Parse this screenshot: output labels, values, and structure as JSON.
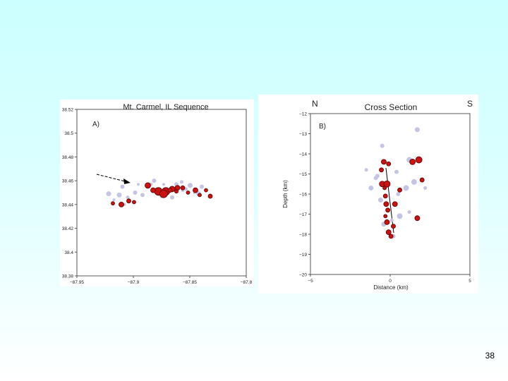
{
  "slide": {
    "page_number": "38"
  },
  "colors": {
    "background_top": "#ccffff",
    "event_red": "#cc1111",
    "event_outline": "#550000",
    "event_gray": "#c4c4e4"
  },
  "chart_data": [
    {
      "type": "scatter",
      "panel_label": "A)",
      "title": "Mt. Carmel, IL Sequence",
      "xlabel": "",
      "ylabel": "",
      "xlim": [
        -87.96,
        -87.8
      ],
      "ylim": [
        38.38,
        38.52
      ],
      "x_ticks": [
        "−87.95",
        "−87.9",
        "−87.85",
        "−87.8"
      ],
      "y_ticks": [
        "38.52",
        "38.5",
        "38.48",
        "38.46",
        "38.44",
        "38.42",
        "38.4",
        "38.38"
      ],
      "annotation": "arrow pointing to mainshock",
      "series": [
        {
          "color": "gray",
          "points": [
            [
              -87.898,
              38.448
            ],
            [
              -87.89,
              38.457
            ],
            [
              -87.885,
              38.452
            ],
            [
              -87.878,
              38.457
            ],
            [
              -87.873,
              38.452
            ],
            [
              -87.866,
              38.457
            ],
            [
              -87.86,
              38.452
            ],
            [
              -87.853,
              38.456
            ],
            [
              -87.849,
              38.45
            ],
            [
              -87.842,
              38.455
            ],
            [
              -87.905,
              38.45
            ],
            [
              -87.912,
              38.446
            ],
            [
              -87.92,
              38.448
            ],
            [
              -87.925,
              38.444
            ],
            [
              -87.917,
              38.455
            ],
            [
              -87.887,
              38.46
            ],
            [
              -87.857,
              38.453
            ],
            [
              -87.93,
              38.449
            ],
            [
              -87.902,
              38.457
            ],
            [
              -87.87,
              38.446
            ],
            [
              -87.88,
              38.447
            ],
            [
              -87.861,
              38.459
            ],
            [
              -87.845,
              38.449
            ],
            [
              -87.915,
              38.44
            ]
          ]
        },
        {
          "color": "red",
          "points": [
            [
              -87.876,
              38.451
            ],
            [
              -87.87,
              38.453
            ],
            [
              -87.865,
              38.454
            ],
            [
              -87.86,
              38.454
            ],
            [
              -87.855,
              38.45
            ],
            [
              -87.848,
              38.452
            ],
            [
              -87.844,
              38.448
            ],
            [
              -87.838,
              38.452
            ],
            [
              -87.834,
              38.447
            ],
            [
              -87.883,
              38.451
            ],
            [
              -87.893,
              38.456
            ],
            [
              -87.888,
              38.452
            ],
            [
              -87.911,
              38.443
            ],
            [
              -87.906,
              38.442
            ],
            [
              -87.918,
              38.44
            ],
            [
              -87.926,
              38.441
            ],
            [
              -87.866,
              38.451
            ],
            [
              -87.872,
              38.452
            ],
            [
              -87.878,
              38.449
            ]
          ]
        }
      ]
    },
    {
      "type": "scatter",
      "panel_label": "B)",
      "title": "Cross Section",
      "corner_left": "N",
      "corner_right": "S",
      "xlabel": "Distance (km)",
      "ylabel": "Depth (km)",
      "xlim": [
        -5,
        5
      ],
      "ylim": [
        -20,
        -12
      ],
      "x_ticks": [
        "−5",
        "0",
        "5"
      ],
      "y_ticks": [
        "−12",
        "−13",
        "−14",
        "−15",
        "−16",
        "−17",
        "−18",
        "−19",
        "−20"
      ],
      "annotation": "dipping fault line",
      "series": [
        {
          "color": "gray",
          "points": [
            [
              1.7,
              -12.8
            ],
            [
              -0.5,
              -13.6
            ],
            [
              1.2,
              -14.3
            ],
            [
              -1.5,
              -14.8
            ],
            [
              -0.8,
              -15.1
            ],
            [
              -1.2,
              -15.7
            ],
            [
              -0.2,
              -15.5
            ],
            [
              1.5,
              -15.4
            ],
            [
              2.2,
              -15.7
            ],
            [
              0.5,
              -16
            ],
            [
              -0.6,
              -16.3
            ],
            [
              0.3,
              -16.5
            ],
            [
              0.6,
              -17.1
            ],
            [
              1.2,
              -16.9
            ],
            [
              0.2,
              -18.1
            ],
            [
              -0.4,
              -17.5
            ],
            [
              0.4,
              -14.9
            ],
            [
              1.0,
              -15.7
            ],
            [
              0.1,
              -17.3
            ],
            [
              -0.9,
              -15.2
            ]
          ]
        },
        {
          "color": "red",
          "points": [
            [
              -0.4,
              -14.4
            ],
            [
              -0.55,
              -14.8
            ],
            [
              -0.5,
              -15.5
            ],
            [
              -0.2,
              -15.5
            ],
            [
              -0.3,
              -16.1
            ],
            [
              -0.25,
              -16.5
            ],
            [
              -0.15,
              -16.8
            ],
            [
              -0.3,
              -17.1
            ],
            [
              -0.1,
              -17.9
            ],
            [
              0.05,
              -18.1
            ],
            [
              0.3,
              -16.5
            ],
            [
              0.6,
              -15.8
            ],
            [
              1.4,
              -14.4
            ],
            [
              1.8,
              -14.3
            ],
            [
              2.0,
              -15.3
            ],
            [
              1.7,
              -17.2
            ],
            [
              -0.1,
              -14.5
            ],
            [
              -0.35,
              -15.7
            ],
            [
              -0.2,
              -17.4
            ],
            [
              0.2,
              -17.6
            ]
          ]
        }
      ]
    }
  ]
}
